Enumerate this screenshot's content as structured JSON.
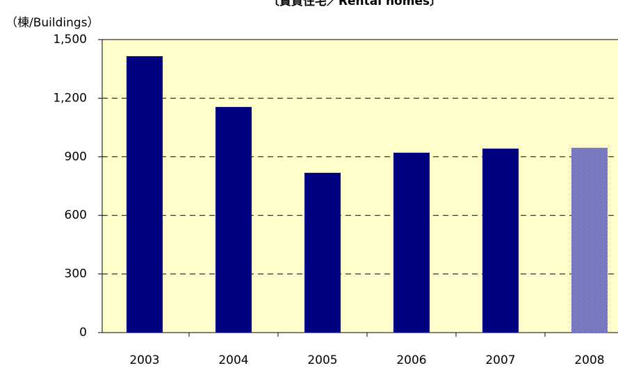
{
  "chart_data": {
    "type": "bar",
    "title": "〔賃貸住宅／Rental homes〕",
    "y_axis_label": "（棟/Buildings）",
    "categories": [
      "2003",
      "2004",
      "2005",
      "2006",
      "2007",
      "2008"
    ],
    "values": [
      1415,
      1155,
      818,
      921,
      942,
      946
    ],
    "color": "#000080",
    "patterned": [
      false,
      false,
      false,
      false,
      false,
      true
    ],
    "background": "#ffffcc",
    "ylim": [
      0,
      1500
    ],
    "yticks": [
      0,
      300,
      600,
      900,
      {
        "value": 1200,
        "label": "1,200"
      },
      {
        "value": 1500,
        "label": "1,500"
      }
    ],
    "grid": true
  }
}
